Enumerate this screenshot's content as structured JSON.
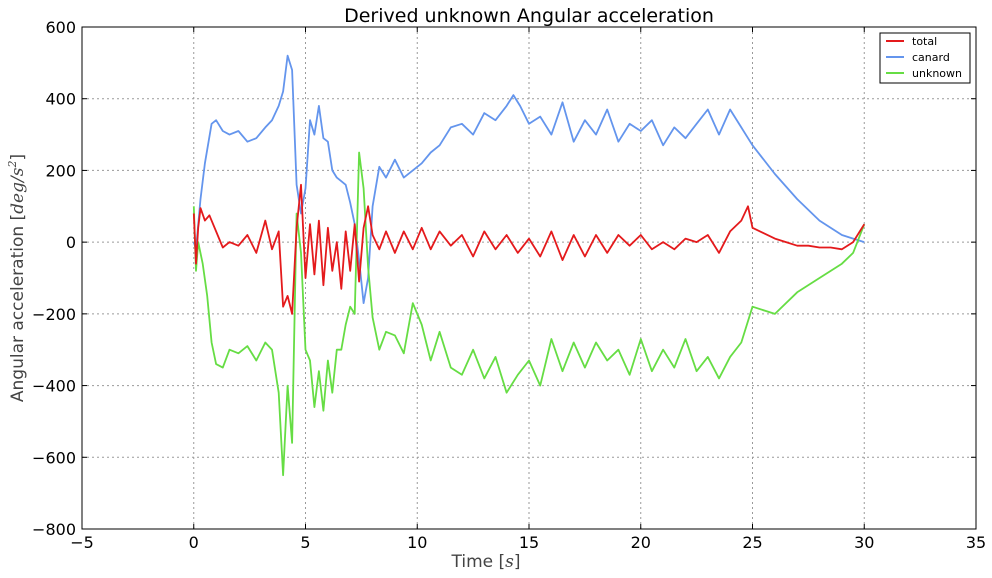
{
  "chart_data": {
    "type": "line",
    "title": "Derived unknown Angular acceleration",
    "xlabel_text": "Time",
    "xlabel_unit": "s",
    "ylabel_text": "Angular acceleration",
    "ylabel_unit_base": "deg/s",
    "ylabel_unit_exp": "2",
    "xlim": [
      -5,
      35
    ],
    "ylim": [
      -800,
      600
    ],
    "xticks": [
      -5,
      0,
      5,
      10,
      15,
      20,
      25,
      30,
      35
    ],
    "yticks": [
      -800,
      -600,
      -400,
      -200,
      0,
      200,
      400,
      600
    ],
    "xtick_labels": [
      "−5",
      "0",
      "5",
      "10",
      "15",
      "20",
      "25",
      "30",
      "35"
    ],
    "ytick_labels": [
      "−800",
      "−600",
      "−400",
      "−200",
      "0",
      "200",
      "400",
      "600"
    ],
    "grid": true,
    "legend_position": "top-right",
    "series": [
      {
        "name": "total",
        "color": "#e41a1c",
        "x": [
          0,
          0.1,
          0.2,
          0.3,
          0.5,
          0.7,
          1.0,
          1.3,
          1.6,
          2.0,
          2.4,
          2.8,
          3.2,
          3.5,
          3.8,
          4.0,
          4.2,
          4.4,
          4.6,
          4.8,
          5.0,
          5.2,
          5.4,
          5.6,
          5.8,
          6.0,
          6.2,
          6.4,
          6.6,
          6.8,
          7.0,
          7.2,
          7.4,
          7.6,
          7.8,
          8.0,
          8.3,
          8.6,
          9.0,
          9.4,
          9.8,
          10.2,
          10.6,
          11.0,
          11.5,
          12.0,
          12.5,
          13.0,
          13.5,
          14.0,
          14.5,
          15.0,
          15.5,
          16.0,
          16.5,
          17.0,
          17.5,
          18.0,
          18.5,
          19.0,
          19.5,
          20.0,
          20.5,
          21.0,
          21.5,
          22.0,
          22.5,
          23.0,
          23.5,
          24.0,
          24.5,
          24.8,
          25.0,
          25.5,
          26.0,
          26.5,
          27.0,
          27.5,
          28.0,
          28.5,
          29.0,
          29.5,
          29.8,
          30.0
        ],
        "y": [
          80,
          -60,
          40,
          95,
          60,
          75,
          30,
          -15,
          0,
          -10,
          20,
          -30,
          60,
          -20,
          30,
          -180,
          -150,
          -200,
          40,
          160,
          -100,
          50,
          -90,
          60,
          -120,
          40,
          -80,
          0,
          -130,
          30,
          -80,
          50,
          -110,
          40,
          100,
          20,
          -20,
          30,
          -30,
          30,
          -20,
          40,
          -20,
          30,
          -10,
          20,
          -40,
          30,
          -20,
          20,
          -30,
          10,
          -40,
          30,
          -50,
          20,
          -40,
          20,
          -30,
          20,
          -10,
          20,
          -20,
          0,
          -20,
          10,
          0,
          20,
          -30,
          30,
          60,
          100,
          40,
          25,
          10,
          0,
          -10,
          -10,
          -15,
          -15,
          -20,
          0,
          30,
          50
        ]
      },
      {
        "name": "canard",
        "color": "#6495ed",
        "x": [
          0,
          0.1,
          0.3,
          0.5,
          0.8,
          1.0,
          1.3,
          1.6,
          2.0,
          2.4,
          2.8,
          3.2,
          3.5,
          3.8,
          4.0,
          4.2,
          4.4,
          4.6,
          4.8,
          5.0,
          5.2,
          5.4,
          5.6,
          5.8,
          6.0,
          6.2,
          6.4,
          6.6,
          6.8,
          7.0,
          7.2,
          7.4,
          7.6,
          7.8,
          8.0,
          8.3,
          8.6,
          9.0,
          9.4,
          9.8,
          10.2,
          10.6,
          11.0,
          11.5,
          12.0,
          12.5,
          13.0,
          13.5,
          14.0,
          14.3,
          14.6,
          15.0,
          15.5,
          16.0,
          16.5,
          17.0,
          17.5,
          18.0,
          18.5,
          19.0,
          19.5,
          20.0,
          20.5,
          21.0,
          21.5,
          22.0,
          22.5,
          23.0,
          23.5,
          24.0,
          24.5,
          25.0,
          26.0,
          27.0,
          28.0,
          29.0,
          29.5,
          30.0
        ],
        "y": [
          0,
          -20,
          120,
          220,
          330,
          340,
          310,
          300,
          310,
          280,
          290,
          320,
          340,
          380,
          420,
          520,
          480,
          160,
          80,
          150,
          340,
          300,
          380,
          290,
          280,
          200,
          180,
          170,
          160,
          110,
          50,
          -50,
          -170,
          -100,
          100,
          210,
          180,
          230,
          180,
          200,
          220,
          250,
          270,
          320,
          330,
          300,
          360,
          340,
          380,
          410,
          380,
          330,
          350,
          300,
          390,
          280,
          340,
          300,
          370,
          280,
          330,
          310,
          340,
          270,
          320,
          290,
          330,
          370,
          300,
          370,
          320,
          270,
          190,
          120,
          60,
          20,
          10,
          0
        ]
      },
      {
        "name": "unknown",
        "color": "#66dd44",
        "x": [
          0,
          0.1,
          0.2,
          0.4,
          0.6,
          0.8,
          1.0,
          1.3,
          1.6,
          2.0,
          2.4,
          2.8,
          3.2,
          3.5,
          3.8,
          4.0,
          4.2,
          4.4,
          4.6,
          4.8,
          5.0,
          5.2,
          5.4,
          5.6,
          5.8,
          6.0,
          6.2,
          6.4,
          6.6,
          6.8,
          7.0,
          7.2,
          7.4,
          7.6,
          7.8,
          8.0,
          8.3,
          8.6,
          9.0,
          9.4,
          9.8,
          10.2,
          10.6,
          11.0,
          11.5,
          12.0,
          12.5,
          13.0,
          13.5,
          14.0,
          14.5,
          15.0,
          15.5,
          16.0,
          16.5,
          17.0,
          17.5,
          18.0,
          18.5,
          19.0,
          19.5,
          20.0,
          20.5,
          21.0,
          21.5,
          22.0,
          22.5,
          23.0,
          23.5,
          24.0,
          24.5,
          25.0,
          26.0,
          27.0,
          28.0,
          29.0,
          29.5,
          30.0
        ],
        "y": [
          100,
          -80,
          0,
          -60,
          -150,
          -280,
          -340,
          -350,
          -300,
          -310,
          -290,
          -330,
          -280,
          -300,
          -420,
          -650,
          -400,
          -560,
          80,
          -30,
          -300,
          -330,
          -460,
          -360,
          -470,
          -330,
          -420,
          -300,
          -300,
          -230,
          -180,
          -200,
          250,
          150,
          -70,
          -210,
          -300,
          -250,
          -260,
          -310,
          -170,
          -230,
          -330,
          -250,
          -350,
          -370,
          -300,
          -380,
          -320,
          -420,
          -370,
          -330,
          -400,
          -270,
          -360,
          -280,
          -350,
          -280,
          -330,
          -300,
          -370,
          -270,
          -360,
          -300,
          -350,
          -270,
          -360,
          -320,
          -380,
          -320,
          -280,
          -180,
          -200,
          -140,
          -100,
          -60,
          -30,
          50
        ]
      }
    ]
  }
}
